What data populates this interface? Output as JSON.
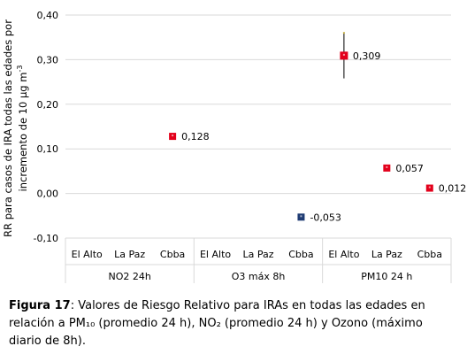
{
  "chart_data": {
    "type": "scatter",
    "ylabel_line1": "RR para casos de IRA todas las edades  por",
    "ylabel_line2": "incremento de 10 µg m",
    "ylabel_sup": "-3",
    "ylim": [
      -0.1,
      0.4
    ],
    "yticks": [
      "0,40",
      "0,30",
      "0,20",
      "0,10",
      "0,00",
      "-0,10"
    ],
    "ytick_values": [
      0.4,
      0.3,
      0.2,
      0.1,
      0.0,
      -0.1
    ],
    "grid": true,
    "cities": [
      "El Alto",
      "La Paz",
      "Cbba",
      "El Alto",
      "La Paz",
      "Cbba",
      "El Alto",
      "La Paz",
      "Cbba"
    ],
    "groups": [
      "NO2 24h",
      "O3 máx 8h",
      "PM10 24 h"
    ],
    "points": [
      {
        "index": 2,
        "value": 0.128,
        "label": "0,128",
        "color": "#e3001b",
        "err_low": 0.128,
        "err_high": 0.128
      },
      {
        "index": 5,
        "value": -0.053,
        "label": "-0,053",
        "color": "#1f3b73",
        "err_low": -0.053,
        "err_high": -0.053
      },
      {
        "index": 6,
        "value": 0.309,
        "label": "0,309",
        "color": "#e3001b",
        "err_low": 0.258,
        "err_high": 0.36
      },
      {
        "index": 7,
        "value": 0.057,
        "label": "0,057",
        "color": "#e3001b",
        "err_low": 0.057,
        "err_high": 0.057
      },
      {
        "index": 8,
        "value": 0.012,
        "label": "0,012",
        "color": "#e3001b",
        "err_low": 0.012,
        "err_high": 0.012
      }
    ]
  },
  "caption": {
    "label": "Figura 17",
    "text": ":  Valores de Riesgo Relativo para IRAs en todas las edades en relación a PM₁₀ (promedio 24 h), NO₂ (promedio 24 h) y Ozono (máximo diario de 8h)."
  }
}
